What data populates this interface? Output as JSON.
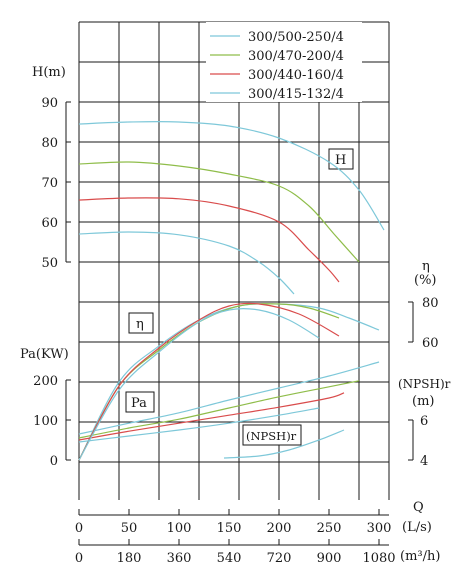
{
  "chart_data": {
    "type": "line",
    "series": [
      {
        "name": "300/500-250/4",
        "color": "#7ec8d9",
        "head": [
          [
            0,
            84.5
          ],
          [
            50,
            85
          ],
          [
            100,
            85
          ],
          [
            150,
            84
          ],
          [
            200,
            81
          ],
          [
            250,
            75
          ],
          [
            280,
            68
          ],
          [
            305,
            58
          ]
        ],
        "efficiency": [
          [
            0,
            0
          ],
          [
            40,
            40
          ],
          [
            80,
            58
          ],
          [
            120,
            71
          ],
          [
            160,
            78
          ],
          [
            200,
            79
          ],
          [
            240,
            77
          ],
          [
            270,
            72
          ],
          [
            300,
            66
          ]
        ],
        "power": [
          [
            0,
            65
          ],
          [
            50,
            92
          ],
          [
            100,
            118
          ],
          [
            150,
            150
          ],
          [
            200,
            180
          ],
          [
            250,
            210
          ],
          [
            300,
            245
          ]
        ]
      },
      {
        "name": "300/470-200/4",
        "color": "#8fbd4a",
        "head": [
          [
            0,
            74.5
          ],
          [
            50,
            75
          ],
          [
            100,
            74
          ],
          [
            150,
            72
          ],
          [
            200,
            69
          ],
          [
            230,
            64
          ],
          [
            255,
            57
          ],
          [
            280,
            50
          ]
        ],
        "efficiency": [
          [
            0,
            0
          ],
          [
            40,
            38
          ],
          [
            80,
            56
          ],
          [
            120,
            70
          ],
          [
            160,
            78
          ],
          [
            200,
            79
          ],
          [
            230,
            77
          ],
          [
            260,
            72
          ]
        ],
        "power": [
          [
            0,
            55
          ],
          [
            50,
            80
          ],
          [
            100,
            102
          ],
          [
            150,
            130
          ],
          [
            200,
            158
          ],
          [
            250,
            183
          ],
          [
            280,
            198
          ]
        ]
      },
      {
        "name": "300/440-160/4",
        "color": "#d94c4c",
        "head": [
          [
            0,
            65.5
          ],
          [
            50,
            66
          ],
          [
            100,
            65.8
          ],
          [
            150,
            64
          ],
          [
            200,
            60
          ],
          [
            230,
            53
          ],
          [
            250,
            48
          ],
          [
            260,
            45
          ]
        ],
        "efficiency": [
          [
            0,
            0
          ],
          [
            40,
            38
          ],
          [
            80,
            57
          ],
          [
            120,
            71
          ],
          [
            150,
            78
          ],
          [
            180,
            79
          ],
          [
            220,
            74
          ],
          [
            260,
            63
          ]
        ],
        "power": [
          [
            0,
            50
          ],
          [
            50,
            72
          ],
          [
            100,
            92
          ],
          [
            150,
            112
          ],
          [
            200,
            132
          ],
          [
            250,
            155
          ],
          [
            265,
            168
          ]
        ]
      },
      {
        "name": "300/415-132/4",
        "color": "#7ec8d9",
        "head": [
          [
            0,
            57
          ],
          [
            50,
            57.5
          ],
          [
            100,
            56.8
          ],
          [
            150,
            54
          ],
          [
            180,
            50
          ],
          [
            200,
            46
          ],
          [
            215,
            42
          ]
        ],
        "efficiency": [
          [
            0,
            0
          ],
          [
            40,
            36
          ],
          [
            80,
            55
          ],
          [
            120,
            70
          ],
          [
            150,
            76
          ],
          [
            180,
            76
          ],
          [
            210,
            71
          ],
          [
            240,
            62
          ]
        ],
        "power": [
          [
            0,
            45
          ],
          [
            50,
            60
          ],
          [
            100,
            75
          ],
          [
            150,
            92
          ],
          [
            200,
            112
          ],
          [
            240,
            130
          ]
        ]
      }
    ],
    "npsh": [
      [
        145,
        4.1
      ],
      [
        180,
        4.2
      ],
      [
        210,
        4.5
      ],
      [
        240,
        5.0
      ],
      [
        265,
        5.5
      ]
    ],
    "q_ticks_ls": [
      "0",
      "50",
      "100",
      "150",
      "200",
      "250",
      "300"
    ],
    "q_ticks_m3h": [
      "0",
      "180",
      "360",
      "540",
      "720",
      "900",
      "1080"
    ],
    "h_ticks": [
      "50",
      "60",
      "70",
      "80",
      "90"
    ],
    "eta_ticks": [
      "60",
      "80"
    ],
    "pa_ticks": [
      "0",
      "100",
      "200"
    ],
    "npsh_ticks": [
      "4",
      "6"
    ],
    "q_range": [
      0,
      300
    ],
    "h_range": [
      50,
      90
    ],
    "eta_range": [
      60,
      80
    ],
    "pa_range": [
      0,
      200
    ],
    "npsh_range": [
      4,
      6
    ]
  },
  "labels": {
    "h_axis": "H(m)",
    "eta_axis": "η",
    "eta_unit": "(%)",
    "pa_axis": "Pa(KW)",
    "npsh_axis": "(NPSH)r",
    "npsh_unit": "(m)",
    "q_axis": "Q",
    "q_unit_ls": "(L/s)",
    "q_unit_m3h": "(m³/h)",
    "box_h": "H",
    "box_eta": "η",
    "box_pa": "Pa",
    "box_npsh": "(NPSH)r"
  },
  "colors": {
    "grid": "#1a1a1a",
    "axis": "#1a1a1a"
  }
}
